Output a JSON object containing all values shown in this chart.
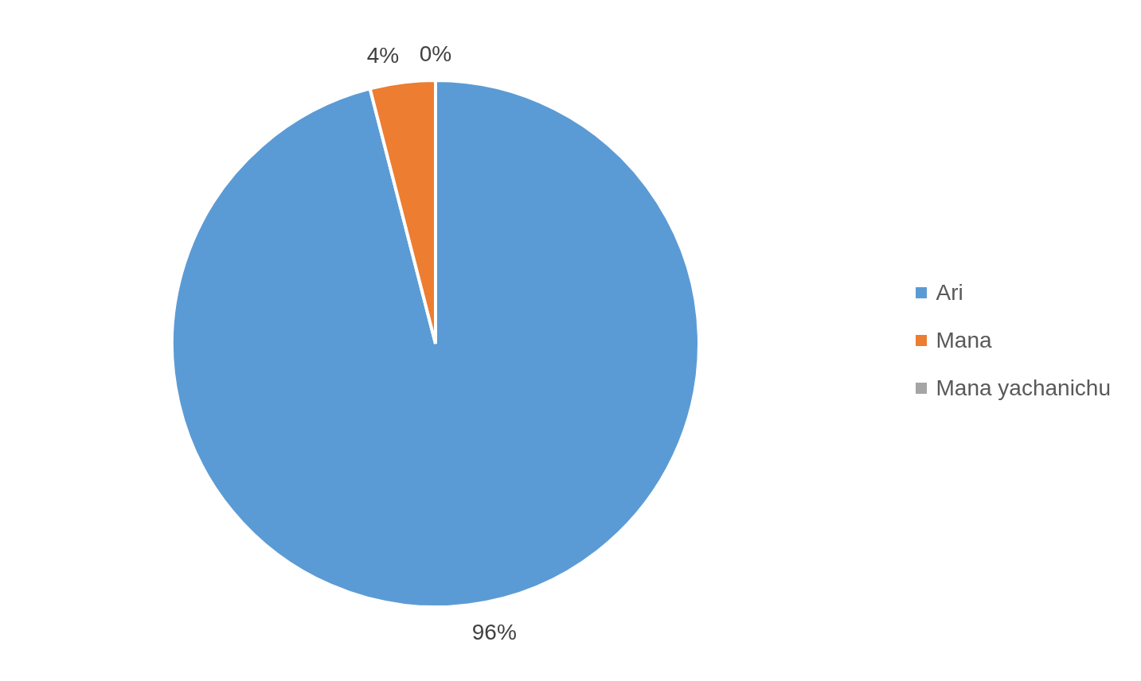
{
  "chart_data": {
    "type": "pie",
    "categories": [
      "Ari",
      "Mana",
      "Mana yachanichu"
    ],
    "values": [
      96,
      4,
      0
    ],
    "value_labels": [
      "96%",
      "4%",
      "0%"
    ],
    "colors": [
      "#5b9bd5",
      "#ed7d31",
      "#a5a5a5"
    ],
    "legend": "right"
  }
}
